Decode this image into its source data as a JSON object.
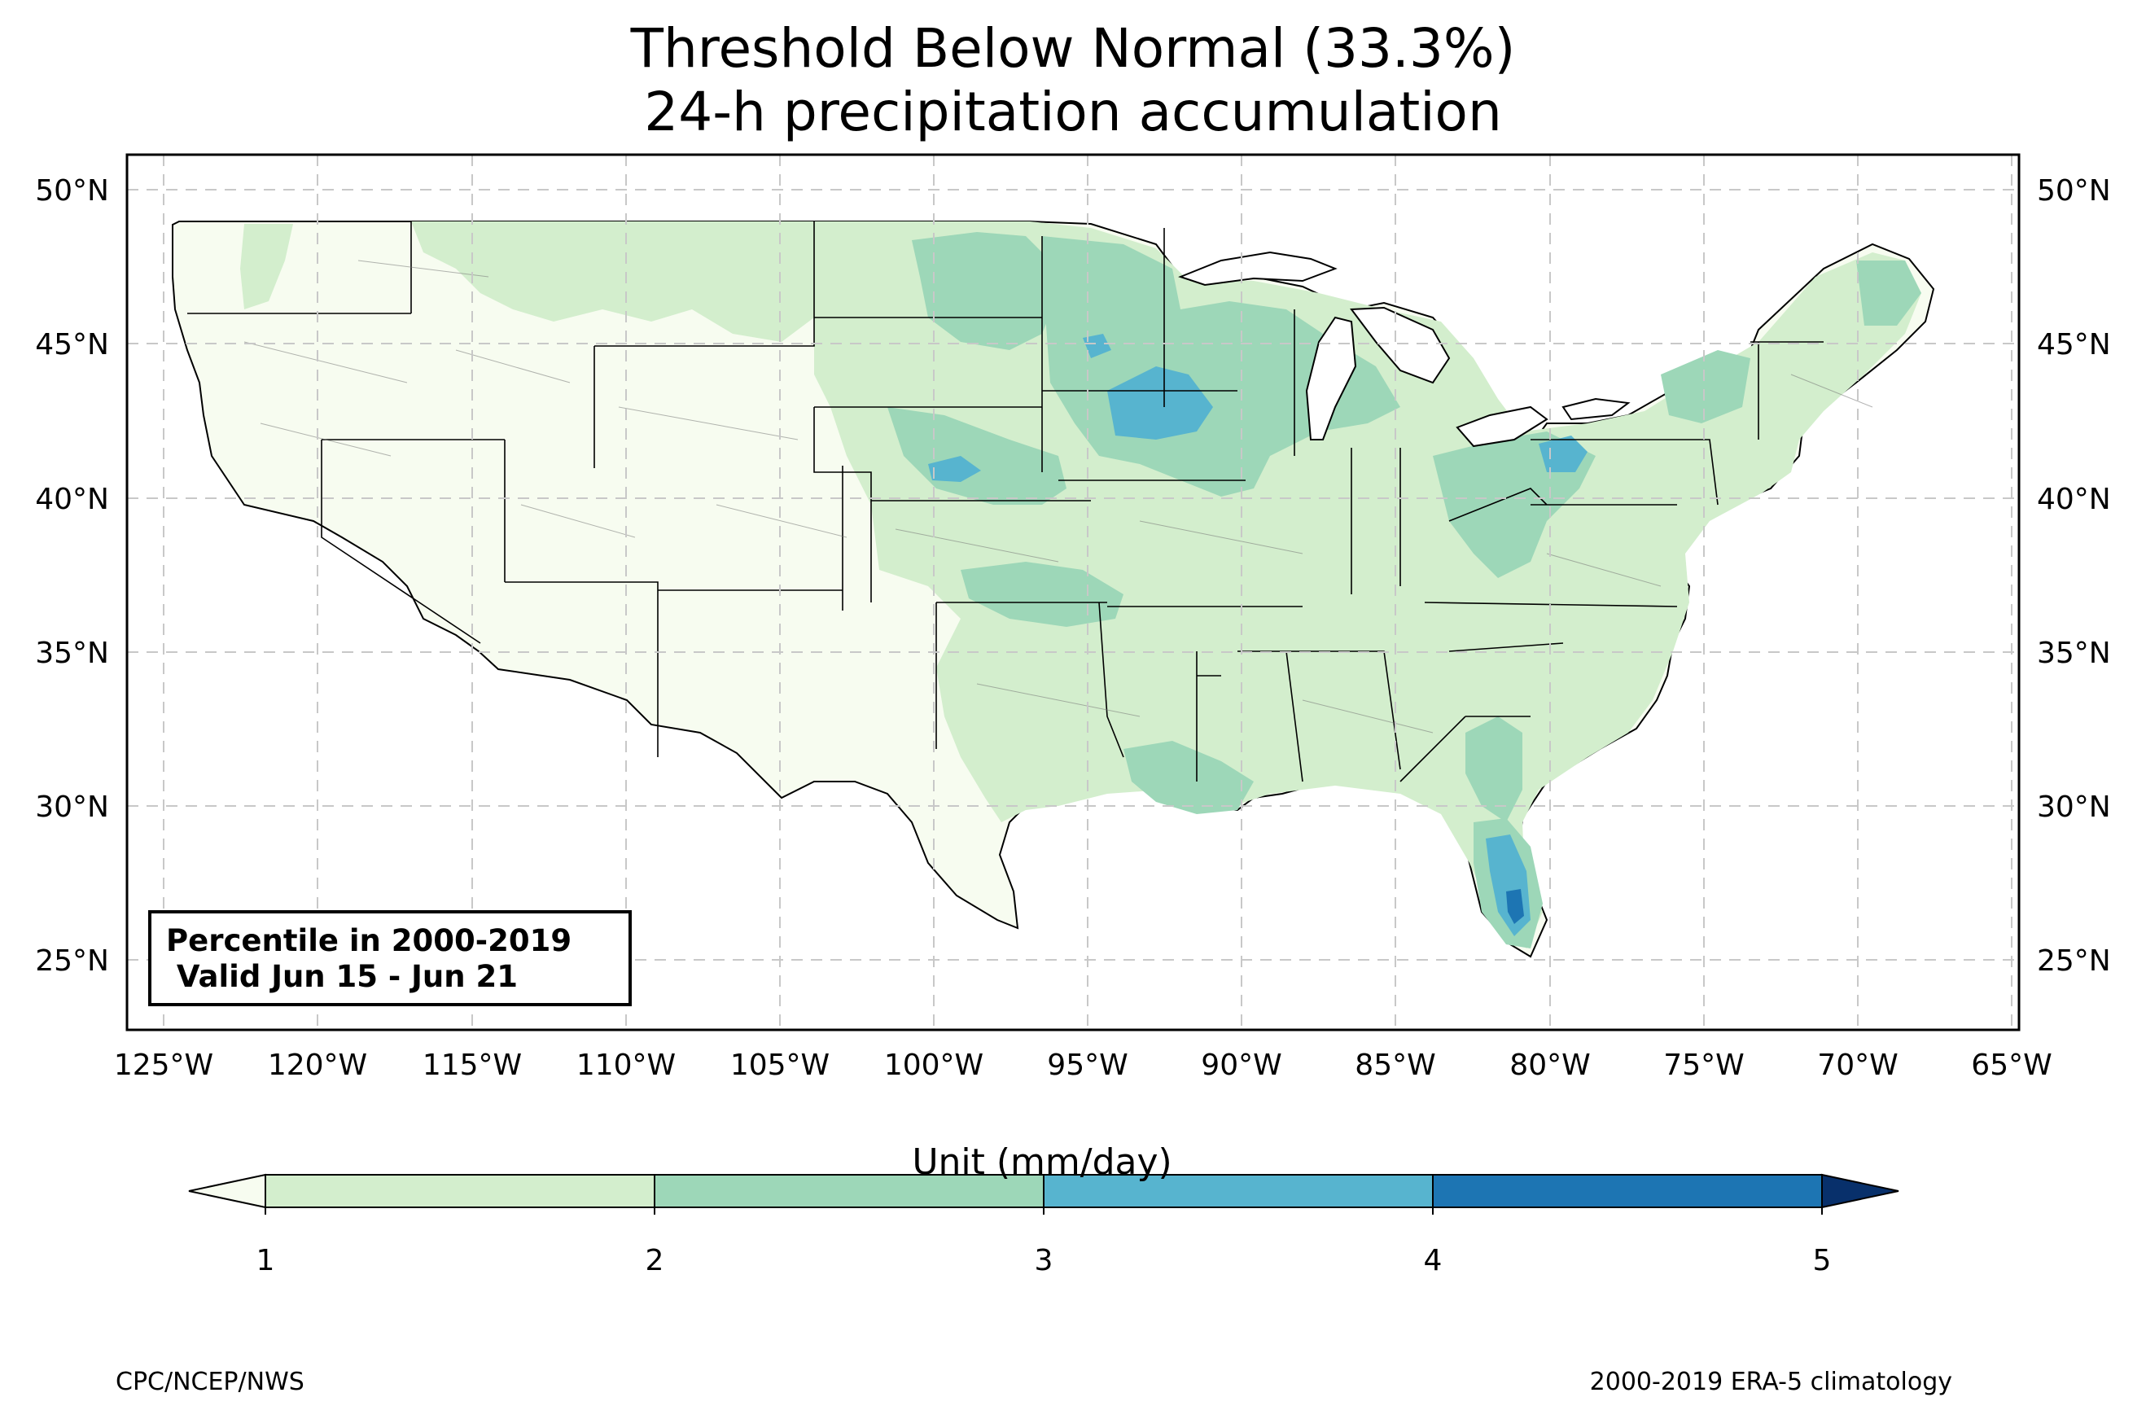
{
  "title": {
    "line1": "Threshold Below Normal (33.3%)",
    "line2": "24-h precipitation accumulation"
  },
  "map": {
    "lon_ticks": [
      "125°W",
      "120°W",
      "115°W",
      "110°W",
      "105°W",
      "100°W",
      "95°W",
      "90°W",
      "85°W",
      "80°W",
      "75°W",
      "70°W",
      "65°W"
    ],
    "lat_ticks": [
      "50°N",
      "45°N",
      "40°N",
      "35°N",
      "30°N",
      "25°N"
    ],
    "info_box": {
      "line1": "Percentile in 2000-2019",
      "line2": " Valid Jun 15 - Jun 21"
    }
  },
  "colorbar": {
    "title": "Unit (mm/day)",
    "levels": [
      "1",
      "2",
      "3",
      "4",
      "5"
    ],
    "colors": {
      "below_min": "#f7fcf0",
      "c1_2": "#d3eecd",
      "c2_3": "#9dd7b8",
      "c3_4": "#57b4cf",
      "c4_5": "#1d75b3",
      "above_max": "#08306b"
    }
  },
  "footer": {
    "left": "CPC/NCEP/NWS",
    "right": "2000-2019 ERA-5 climatology"
  }
}
